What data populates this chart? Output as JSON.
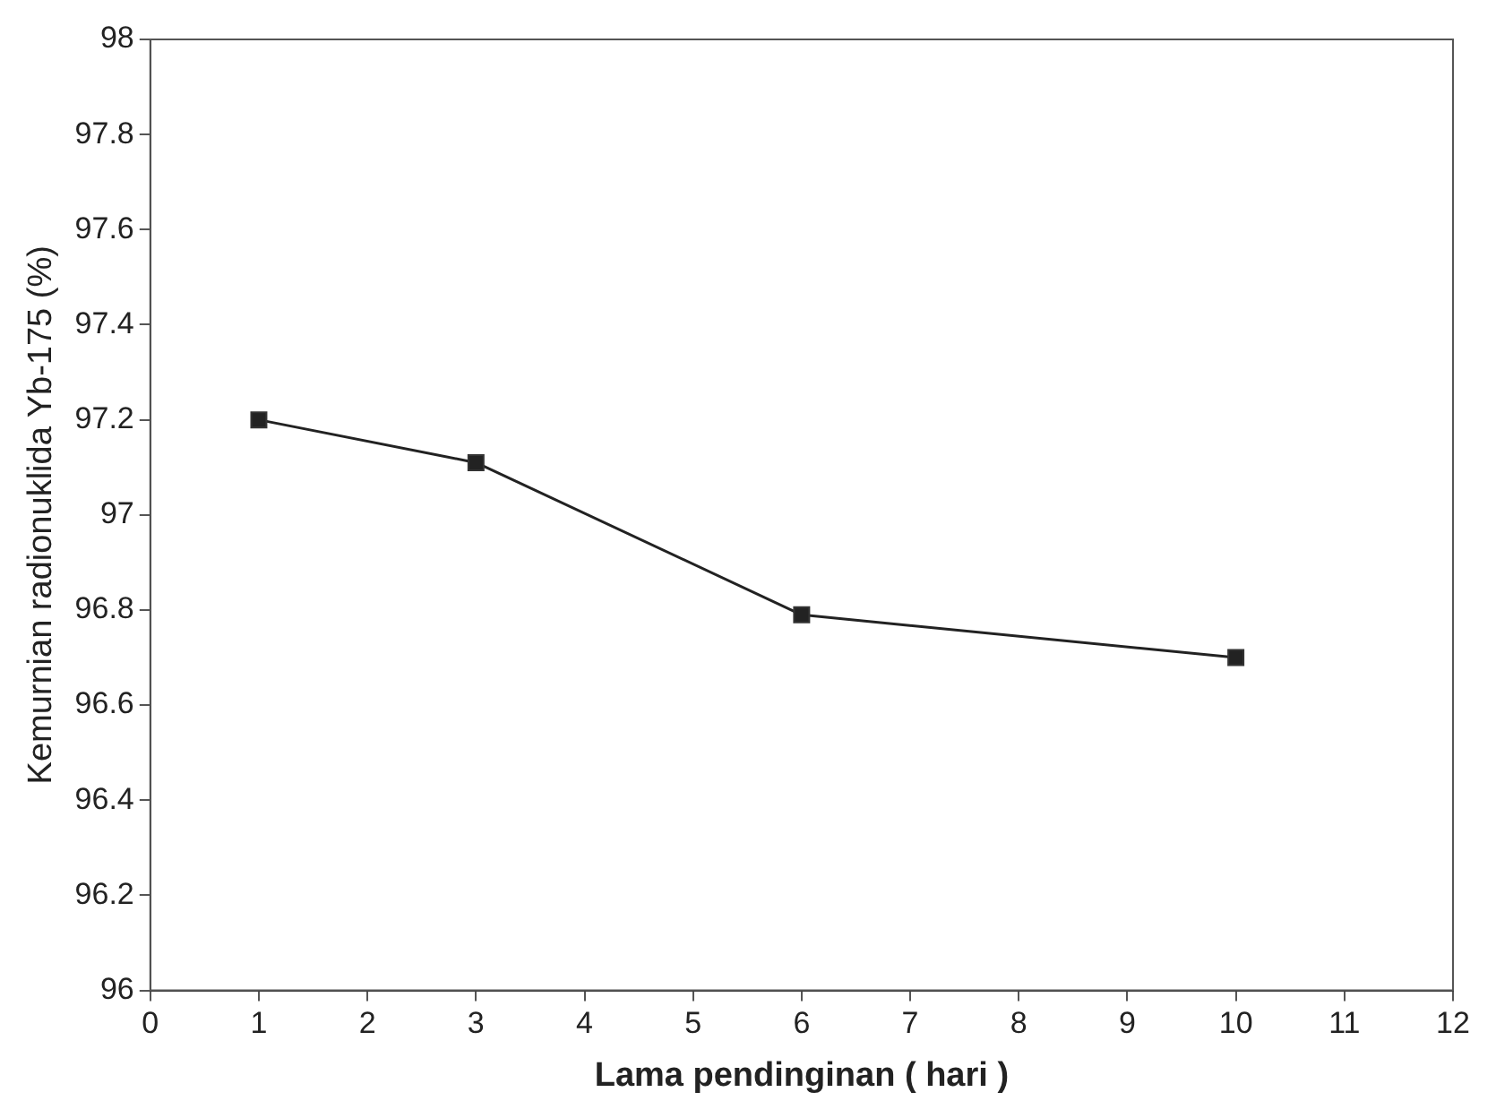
{
  "chart_data": {
    "type": "line",
    "xlabel": "Lama pendinginan ( hari )",
    "ylabel": "Kemurnian radionuklida Yb-175 (%)",
    "x": [
      1,
      3,
      6,
      10
    ],
    "series": [
      {
        "color": "#222222",
        "values": [
          97.2,
          97.11,
          96.79,
          96.7
        ]
      }
    ],
    "xlim": [
      0,
      12
    ],
    "xticks": [
      0,
      1,
      2,
      3,
      4,
      5,
      6,
      7,
      8,
      9,
      10,
      11,
      12
    ],
    "ylim": [
      96,
      98
    ],
    "yticks": [
      96,
      96.2,
      96.4,
      96.6,
      96.8,
      97,
      97.2,
      97.4,
      97.6,
      97.8,
      98
    ],
    "marker": "square",
    "line_style": "solid",
    "grid": false,
    "legend": false
  }
}
